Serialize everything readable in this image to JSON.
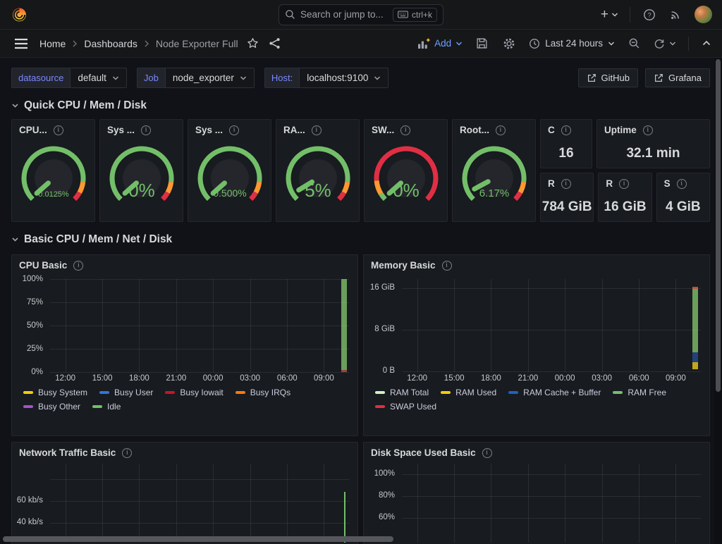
{
  "topbar": {
    "search_placeholder": "Search or jump to...",
    "search_shortcut": "ctrl+k"
  },
  "breadcrumb": {
    "items": [
      "Home",
      "Dashboards",
      "Node Exporter Full"
    ]
  },
  "toolbar": {
    "add_label": "Add",
    "time_range": "Last 24 hours"
  },
  "variables": [
    {
      "label": "datasource",
      "value": "default"
    },
    {
      "label": "Job",
      "value": "node_exporter"
    },
    {
      "label": "Host:",
      "value": "localhost:9100"
    }
  ],
  "links": [
    {
      "label": "GitHub"
    },
    {
      "label": "Grafana"
    }
  ],
  "sections": {
    "quick": "Quick CPU / Mem / Disk",
    "basic": "Basic CPU / Mem / Net / Disk"
  },
  "colors": {
    "accent_blue": "#6e9fff",
    "gauge_green": "#73bf69",
    "gauge_orange": "#ff9830",
    "gauge_red": "#e02f44"
  },
  "gauges": [
    {
      "title": "CPU...",
      "value": "0.0125%",
      "frac": 0.0005,
      "segments": [
        {
          "color": "#73bf69",
          "frac": 0.86
        },
        {
          "color": "#ff9830",
          "frac": 0.08
        },
        {
          "color": "#e02f44",
          "frac": 0.06
        }
      ]
    },
    {
      "title": "Sys ...",
      "value": "0%",
      "frac": 0.002,
      "segments": [
        {
          "color": "#73bf69",
          "frac": 0.86
        },
        {
          "color": "#ff9830",
          "frac": 0.08
        },
        {
          "color": "#e02f44",
          "frac": 0.06
        }
      ]
    },
    {
      "title": "Sys ...",
      "value": "0.500%",
      "frac": 0.005,
      "segments": [
        {
          "color": "#73bf69",
          "frac": 0.86
        },
        {
          "color": "#ff9830",
          "frac": 0.08
        },
        {
          "color": "#e02f44",
          "frac": 0.06
        }
      ]
    },
    {
      "title": "RA...",
      "value": "5%",
      "frac": 0.05,
      "segments": [
        {
          "color": "#73bf69",
          "frac": 0.86
        },
        {
          "color": "#ff9830",
          "frac": 0.08
        },
        {
          "color": "#e02f44",
          "frac": 0.06
        }
      ]
    },
    {
      "title": "SW...",
      "value": "0%",
      "frac": 0.002,
      "segments": [
        {
          "color": "#73bf69",
          "frac": 0.05
        },
        {
          "color": "#ff9830",
          "frac": 0.1
        },
        {
          "color": "#e02f44",
          "frac": 0.85
        }
      ]
    },
    {
      "title": "Root...",
      "value": "6.17%",
      "frac": 0.0617,
      "segments": [
        {
          "color": "#73bf69",
          "frac": 0.86
        },
        {
          "color": "#ff9830",
          "frac": 0.08
        },
        {
          "color": "#e02f44",
          "frac": 0.06
        }
      ]
    }
  ],
  "stats": [
    {
      "title": "C",
      "value": "16"
    },
    {
      "title": "Uptime",
      "value": "32.1 min"
    },
    {
      "title": "R",
      "value": "784 GiB"
    },
    {
      "title": "R",
      "value": "16 GiB"
    },
    {
      "title": "S",
      "value": "4 GiB"
    }
  ],
  "panels": {
    "cpu": {
      "title": "CPU Basic",
      "yticks": [
        "100%",
        "75%",
        "50%",
        "25%",
        "0%"
      ],
      "xticks": [
        "12:00",
        "15:00",
        "18:00",
        "21:00",
        "00:00",
        "03:00",
        "06:00",
        "09:00"
      ],
      "legend": [
        {
          "label": "Busy System",
          "color": "#f2cc0c"
        },
        {
          "label": "Busy User",
          "color": "#3274d9"
        },
        {
          "label": "Busy Iowait",
          "color": "#c4162a"
        },
        {
          "label": "Busy IRQs",
          "color": "#ff780a"
        },
        {
          "label": "Busy Other",
          "color": "#a352cc"
        },
        {
          "label": "Idle",
          "color": "#73bf69"
        }
      ]
    },
    "memory": {
      "title": "Memory Basic",
      "yticks": [
        "16 GiB",
        "8 GiB",
        "0 B"
      ],
      "xticks": [
        "12:00",
        "15:00",
        "18:00",
        "21:00",
        "00:00",
        "03:00",
        "06:00",
        "09:00"
      ],
      "legend": [
        {
          "label": "RAM Total",
          "color": "#cdf2c2"
        },
        {
          "label": "RAM Used",
          "color": "#f2cc0c"
        },
        {
          "label": "RAM Cache + Buffer",
          "color": "#1f60c4"
        },
        {
          "label": "RAM Free",
          "color": "#73bf69"
        },
        {
          "label": "SWAP Used",
          "color": "#e02f44"
        }
      ]
    },
    "network": {
      "title": "Network Traffic Basic",
      "yticks": [
        "60 kb/s",
        "40 kb/s"
      ]
    },
    "disk": {
      "title": "Disk Space Used Basic",
      "yticks": [
        "100%",
        "80%",
        "60%"
      ]
    }
  },
  "chart_data": [
    {
      "type": "area",
      "title": "CPU Basic",
      "stacked": true,
      "ylim": [
        0,
        100
      ],
      "unit": "percent",
      "x_ticks": [
        "12:00",
        "15:00",
        "18:00",
        "21:00",
        "00:00",
        "03:00",
        "06:00",
        "09:00"
      ],
      "note": "Data present only for the final ~15 min of the 24h window (vertical green column at right edge).",
      "x": [
        "~10:55",
        "~11:10"
      ],
      "series": [
        {
          "name": "Busy System",
          "values": [
            0.2,
            0.2
          ]
        },
        {
          "name": "Busy User",
          "values": [
            0.2,
            0.2
          ]
        },
        {
          "name": "Busy Iowait",
          "values": [
            0.1,
            0.1
          ]
        },
        {
          "name": "Busy IRQs",
          "values": [
            0,
            0
          ]
        },
        {
          "name": "Busy Other",
          "values": [
            0,
            0
          ]
        },
        {
          "name": "Idle",
          "values": [
            99.5,
            99.5
          ]
        }
      ]
    },
    {
      "type": "area",
      "title": "Memory Basic",
      "stacked": true,
      "unit": "GiB",
      "ylim": [
        0,
        16
      ],
      "x_ticks": [
        "12:00",
        "15:00",
        "18:00",
        "21:00",
        "00:00",
        "03:00",
        "06:00",
        "09:00"
      ],
      "note": "Data present only at right edge of window.",
      "x": [
        "~10:55",
        "~11:10"
      ],
      "series": [
        {
          "name": "RAM Total",
          "values": [
            16,
            16
          ]
        },
        {
          "name": "RAM Used",
          "values": [
            1.7,
            1.7
          ]
        },
        {
          "name": "RAM Cache + Buffer",
          "values": [
            1.6,
            1.6
          ]
        },
        {
          "name": "RAM Free",
          "values": [
            12.7,
            12.7
          ]
        },
        {
          "name": "SWAP Used",
          "values": [
            0,
            0
          ]
        }
      ]
    },
    {
      "type": "line",
      "title": "Network Traffic Basic",
      "unit": "kb/s",
      "yticks_visible": [
        "60 kb/s",
        "40 kb/s"
      ],
      "note": "Single vertical green spike at right edge reaching ~75 kb/s; rest of window empty; panel cut off by viewport."
    },
    {
      "type": "line",
      "title": "Disk Space Used Basic",
      "yticks_visible": [
        "100%",
        "80%",
        "60%"
      ],
      "note": "No series visible in the cropped area; panel cut off by viewport."
    }
  ]
}
